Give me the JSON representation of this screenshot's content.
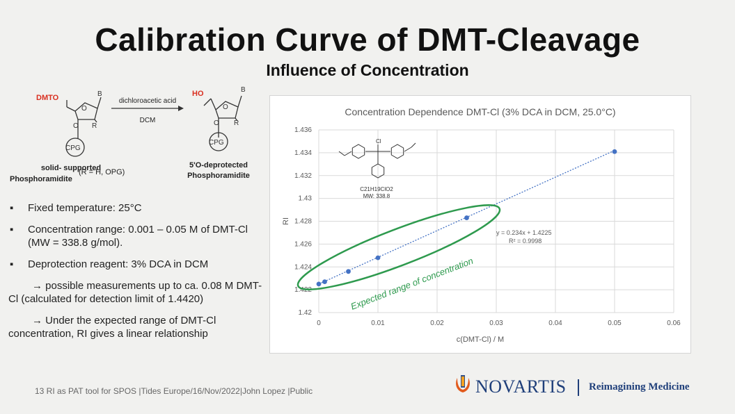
{
  "slide": {
    "title": "Calibration Curve of DMT-Cleavage",
    "subtitle": "Influence of Concentration"
  },
  "scheme": {
    "reactant_group": "DMTO",
    "product_group": "HO",
    "base_label": "B",
    "r_label": "R",
    "o_label": "O",
    "cpg_label": "CPG",
    "reagent": "dichloroacetic acid",
    "solvent": "DCM",
    "reactant_name_line1": "solid- supported",
    "reactant_name_line2": "Phosphoramidite",
    "r_definition": "(R = H, OPG)",
    "product_name_line1": "5'O-deprotected",
    "product_name_line2": "Phosphoramidite"
  },
  "bullets": [
    "Fixed temperature: 25°C",
    "Concentration range: 0.001 – 0.05 M of DMT-Cl (MW = 338.8 g/mol).",
    "Deprotection reagent: 3% DCA in DCM"
  ],
  "notes": [
    "→ possible measurements up to ca. 0.08 M DMT-Cl (calculated for detection limit of 1.4420)",
    "→ Under the expected range of DMT-Cl concentration, RI gives a linear relationship"
  ],
  "chart_data": {
    "type": "scatter",
    "title": "Concentration Dependence DMT-Cl (3% DCA in DCM, 25.0°C)",
    "xlabel": "c(DMT-Cl) / M",
    "ylabel": "RI",
    "xlim": [
      0,
      0.06
    ],
    "ylim": [
      1.42,
      1.436
    ],
    "xticks": [
      0,
      0.01,
      0.02,
      0.03,
      0.04,
      0.05,
      0.06
    ],
    "xtick_labels": [
      "0",
      "0.01",
      "0.02",
      "0.03",
      "0.04",
      "0.05",
      "0.06"
    ],
    "yticks": [
      1.42,
      1.422,
      1.424,
      1.426,
      1.428,
      1.43,
      1.432,
      1.434,
      1.436
    ],
    "ytick_labels": [
      "1.42",
      "1.422",
      "1.424",
      "1.426",
      "1.428",
      "1.43",
      "1.432",
      "1.434",
      "1.436"
    ],
    "grid": true,
    "series": [
      {
        "x": [
          0.0,
          0.001,
          0.005,
          0.01,
          0.025,
          0.05
        ],
        "y": [
          1.4225,
          1.4227,
          1.4236,
          1.4248,
          1.4283,
          1.4341
        ],
        "color": "#4472c4"
      }
    ],
    "trendline": {
      "slope": 0.234,
      "intercept": 1.4225,
      "x_range": [
        0,
        0.05
      ],
      "style": "dotted",
      "color": "#4472c4"
    },
    "equation": "y = 0.234x + 1.4225",
    "r_squared": "R² = 0.9998",
    "annotation": "Expected range of concentration",
    "annotation_color": "#2e9a4e",
    "molecule_label": "Cl",
    "molecule_formula": "C21H19ClO2",
    "molecule_mw": "MW: 338.8"
  },
  "footer": {
    "text": "13   RI as PAT tool for SPOS |Tides Europe/16/Nov/2022|John Lopez |Public"
  },
  "brand": {
    "name": "NOVARTIS",
    "tagline": "Reimagining Medicine",
    "color": "#1f3f7a",
    "accent": "#e25a1c"
  }
}
